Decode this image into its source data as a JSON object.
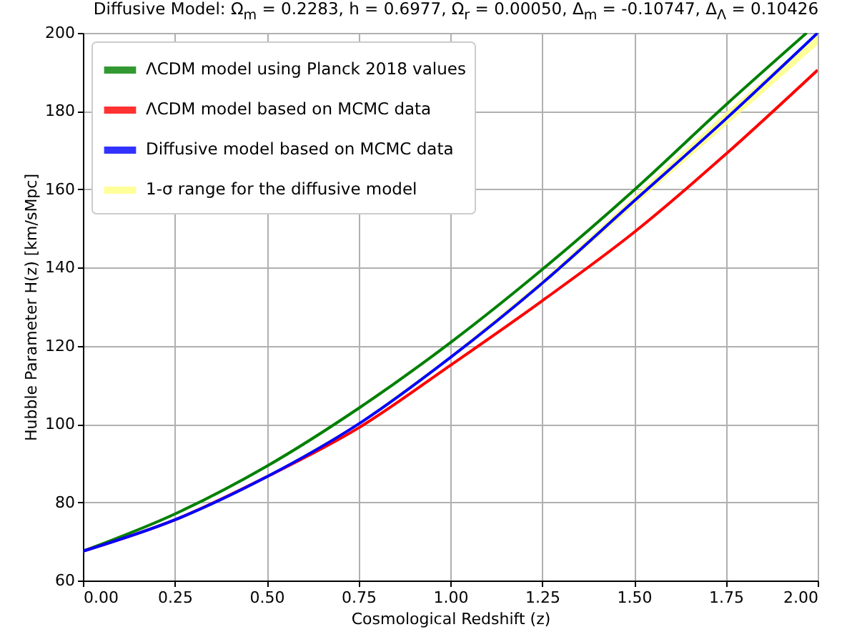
{
  "chart_data": {
    "type": "line",
    "title": "Diffusive Model: Ω$_{m}$ = 0.2283, h = 0.6977, Ω$_{r}$ = 0.00050, Δ$_{m}$ = -0.10747, Δ$_{Λ}$ = 0.10426",
    "xlabel": "Cosmological Redshift (z)",
    "ylabel": "Hubble Parameter H(z) [km/sMpc]",
    "x": [
      0,
      0.25,
      0.5,
      0.75,
      1,
      1.25,
      1.5,
      1.75,
      2
    ],
    "series": [
      {
        "name": "ΛCDM model using Planck 2018 values",
        "color": "#008000",
        "x": [
          0,
          0.25,
          0.5,
          0.75,
          1,
          1.25,
          1.5,
          1.75,
          1.97
        ],
        "values": [
          67.5,
          77.0,
          89.2,
          104.0,
          120.8,
          139.5,
          159.8,
          181.6,
          200
        ]
      },
      {
        "name": "ΛCDM model based on MCMC data",
        "color": "#ff0000",
        "values": [
          67.5,
          75.5,
          86.5,
          99,
          115,
          131.5,
          149,
          169,
          190.5
        ]
      },
      {
        "name": "Diffusive model based on MCMC data",
        "color": "#0000ff",
        "values": [
          67.5,
          75.5,
          86.5,
          100,
          117,
          136,
          157,
          178,
          200
        ],
        "lower": [
          67.5,
          75.5,
          86.4,
          99.8,
          116.6,
          135.3,
          155.8,
          176.3,
          197
        ],
        "upper": [
          67.5,
          75.5,
          86.6,
          100.2,
          117.4,
          136.7,
          158.2,
          179.7,
          200
        ]
      },
      {
        "name": "1-σ range for the diffusive model",
        "color": "#ffff80",
        "type": "area",
        "values": [
          null,
          null,
          null,
          null,
          null,
          null,
          null,
          null,
          null
        ]
      }
    ],
    "xlim": [
      0,
      2
    ],
    "ylim": [
      60,
      200
    ],
    "xticks": [
      {
        "value": 0,
        "label": "0.00"
      },
      {
        "value": 0.25,
        "label": "0.25"
      },
      {
        "value": 0.5,
        "label": "0.50"
      },
      {
        "value": 0.75,
        "label": "0.75"
      },
      {
        "value": 1,
        "label": "1.00"
      },
      {
        "value": 1.25,
        "label": "1.25"
      },
      {
        "value": 1.5,
        "label": "1.50"
      },
      {
        "value": 1.75,
        "label": "1.75"
      },
      {
        "value": 2,
        "label": "2.00"
      }
    ],
    "yticks": [
      60,
      80,
      100,
      120,
      140,
      160,
      180,
      200
    ],
    "grid": true,
    "legend": "top left",
    "line_style": "solid"
  }
}
